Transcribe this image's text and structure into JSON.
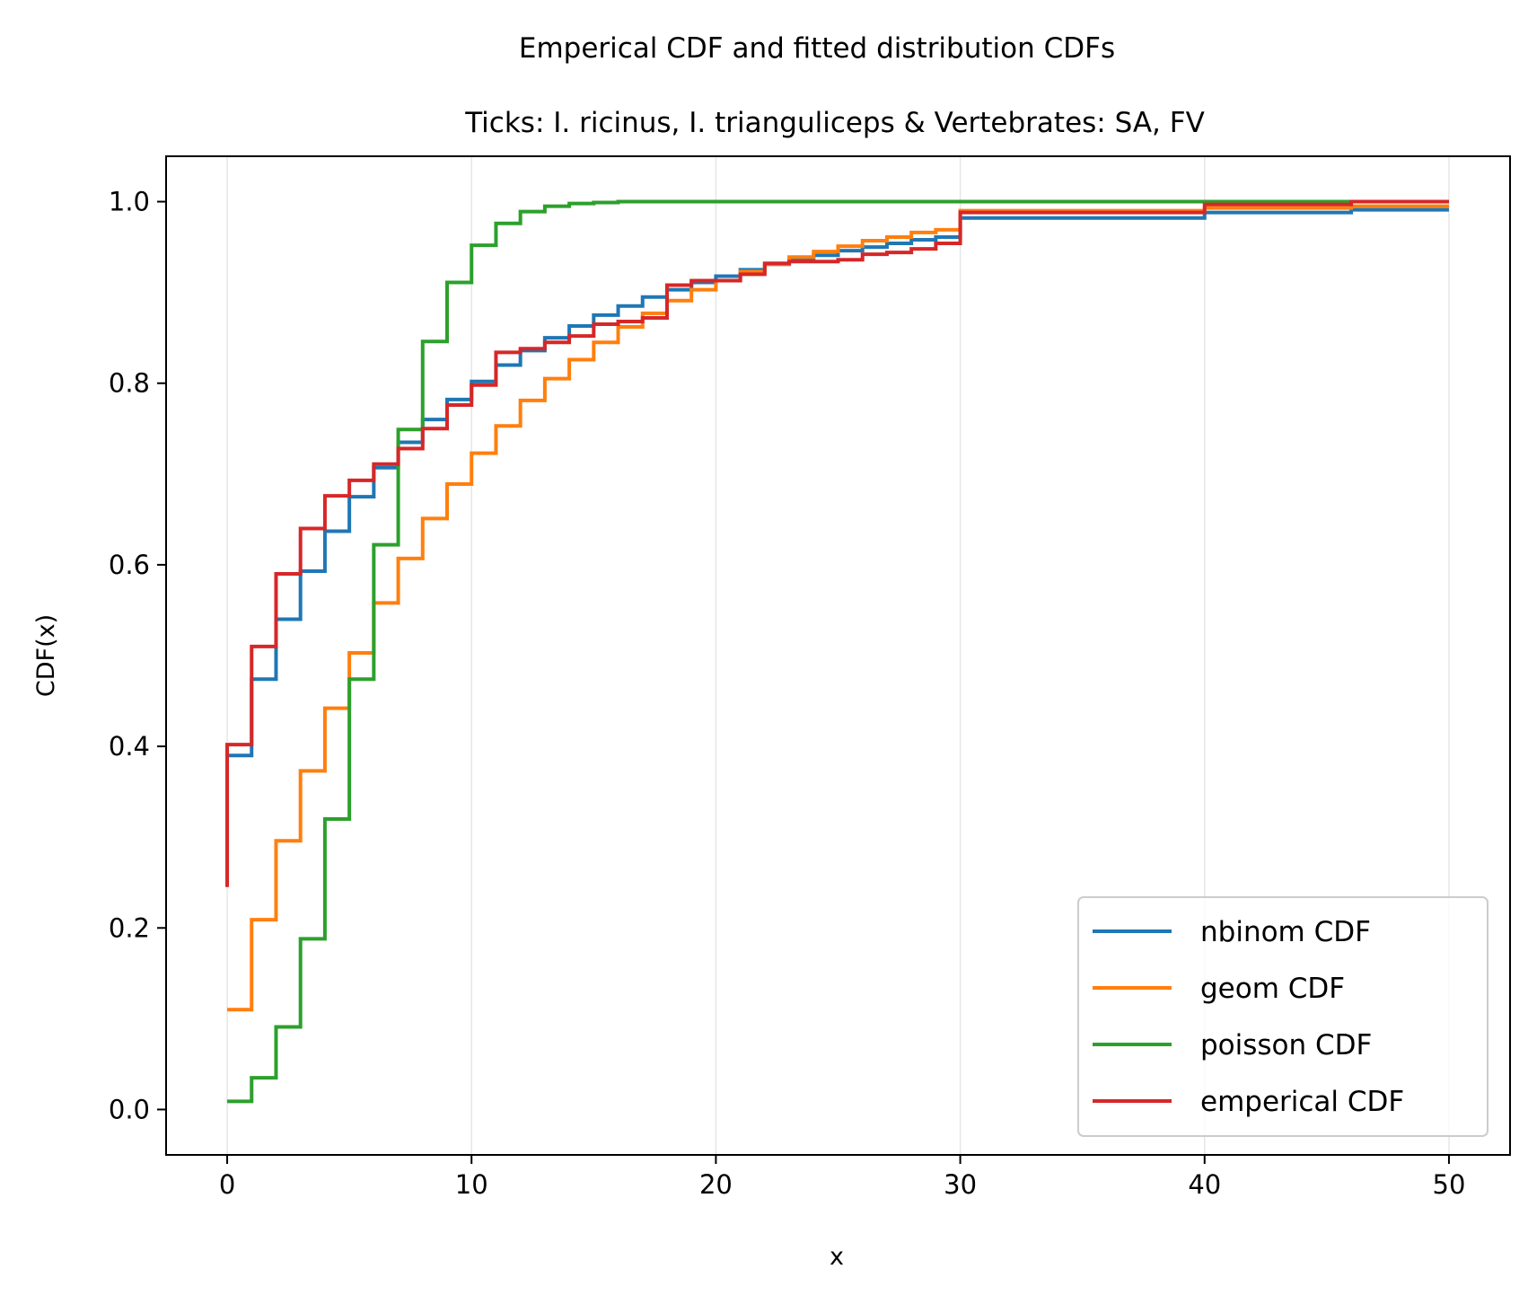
{
  "chart_data": {
    "type": "line",
    "step": true,
    "suptitle": "Emperical CDF and fitted distribution CDFs",
    "title": "Ticks: I. ricinus, I. trianguliceps & Vertebrates: SA, FV",
    "xlabel": "x",
    "ylabel": "CDF(x)",
    "xlim": [
      -2.5,
      52.5
    ],
    "ylim": [
      -0.05,
      1.05
    ],
    "xticks": [
      0,
      10,
      20,
      30,
      40,
      50
    ],
    "xtick_labels": [
      "0",
      "10",
      "20",
      "30",
      "40",
      "50"
    ],
    "yticks": [
      0.0,
      0.2,
      0.4,
      0.6,
      0.8,
      1.0
    ],
    "ytick_labels": [
      "0.0",
      "0.2",
      "0.4",
      "0.6",
      "0.8",
      "1.0"
    ],
    "grid": "x-axis only, light",
    "legend_position": "lower-right",
    "series": [
      {
        "name": "nbinom CDF",
        "color": "#1f77b4",
        "x": [
          0,
          1,
          2,
          3,
          4,
          5,
          6,
          7,
          8,
          9,
          10,
          11,
          12,
          13,
          14,
          15,
          16,
          17,
          18,
          19,
          20,
          21,
          22,
          23,
          24,
          25,
          26,
          27,
          28,
          29,
          30,
          40,
          46,
          50
        ],
        "y": [
          0.39,
          0.474,
          0.54,
          0.593,
          0.637,
          0.675,
          0.707,
          0.735,
          0.76,
          0.782,
          0.802,
          0.82,
          0.836,
          0.85,
          0.863,
          0.875,
          0.885,
          0.895,
          0.903,
          0.911,
          0.918,
          0.925,
          0.931,
          0.936,
          0.941,
          0.946,
          0.95,
          0.954,
          0.958,
          0.961,
          0.982,
          0.988,
          0.991,
          0.991
        ]
      },
      {
        "name": "geom CDF",
        "color": "#ff7f0e",
        "x": [
          0,
          1,
          2,
          3,
          4,
          5,
          6,
          7,
          8,
          9,
          10,
          11,
          12,
          13,
          14,
          15,
          16,
          17,
          18,
          19,
          20,
          21,
          22,
          23,
          24,
          25,
          26,
          27,
          28,
          29,
          30,
          40,
          46,
          50
        ],
        "y": [
          0.11,
          0.209,
          0.296,
          0.373,
          0.442,
          0.503,
          0.558,
          0.607,
          0.651,
          0.689,
          0.723,
          0.753,
          0.781,
          0.805,
          0.826,
          0.845,
          0.862,
          0.877,
          0.891,
          0.903,
          0.913,
          0.923,
          0.931,
          0.939,
          0.945,
          0.951,
          0.957,
          0.961,
          0.966,
          0.969,
          0.99,
          0.993,
          0.995,
          0.995
        ]
      },
      {
        "name": "poisson CDF",
        "color": "#2ca02c",
        "x": [
          0,
          1,
          2,
          3,
          4,
          5,
          6,
          7,
          8,
          9,
          10,
          11,
          12,
          13,
          14,
          15,
          16,
          17,
          50
        ],
        "y": [
          0.009,
          0.035,
          0.091,
          0.188,
          0.32,
          0.474,
          0.622,
          0.749,
          0.846,
          0.911,
          0.952,
          0.976,
          0.989,
          0.995,
          0.998,
          0.999,
          1.0,
          1.0,
          1.0
        ]
      },
      {
        "name": "emperical CDF",
        "color": "#d62728",
        "x": [
          0,
          0,
          1,
          2,
          3,
          4,
          5,
          6,
          7,
          8,
          9,
          10,
          11,
          12,
          13,
          14,
          15,
          16,
          17,
          18,
          19,
          20,
          21,
          22,
          23,
          24,
          25,
          26,
          27,
          28,
          29,
          30,
          40,
          46,
          50
        ],
        "y": [
          0.245,
          0.402,
          0.51,
          0.59,
          0.64,
          0.676,
          0.693,
          0.711,
          0.728,
          0.75,
          0.776,
          0.798,
          0.834,
          0.838,
          0.845,
          0.852,
          0.865,
          0.868,
          0.872,
          0.908,
          0.913,
          0.913,
          0.92,
          0.932,
          0.934,
          0.934,
          0.936,
          0.942,
          0.944,
          0.948,
          0.954,
          0.988,
          0.997,
          1.0,
          1.0
        ]
      }
    ]
  }
}
